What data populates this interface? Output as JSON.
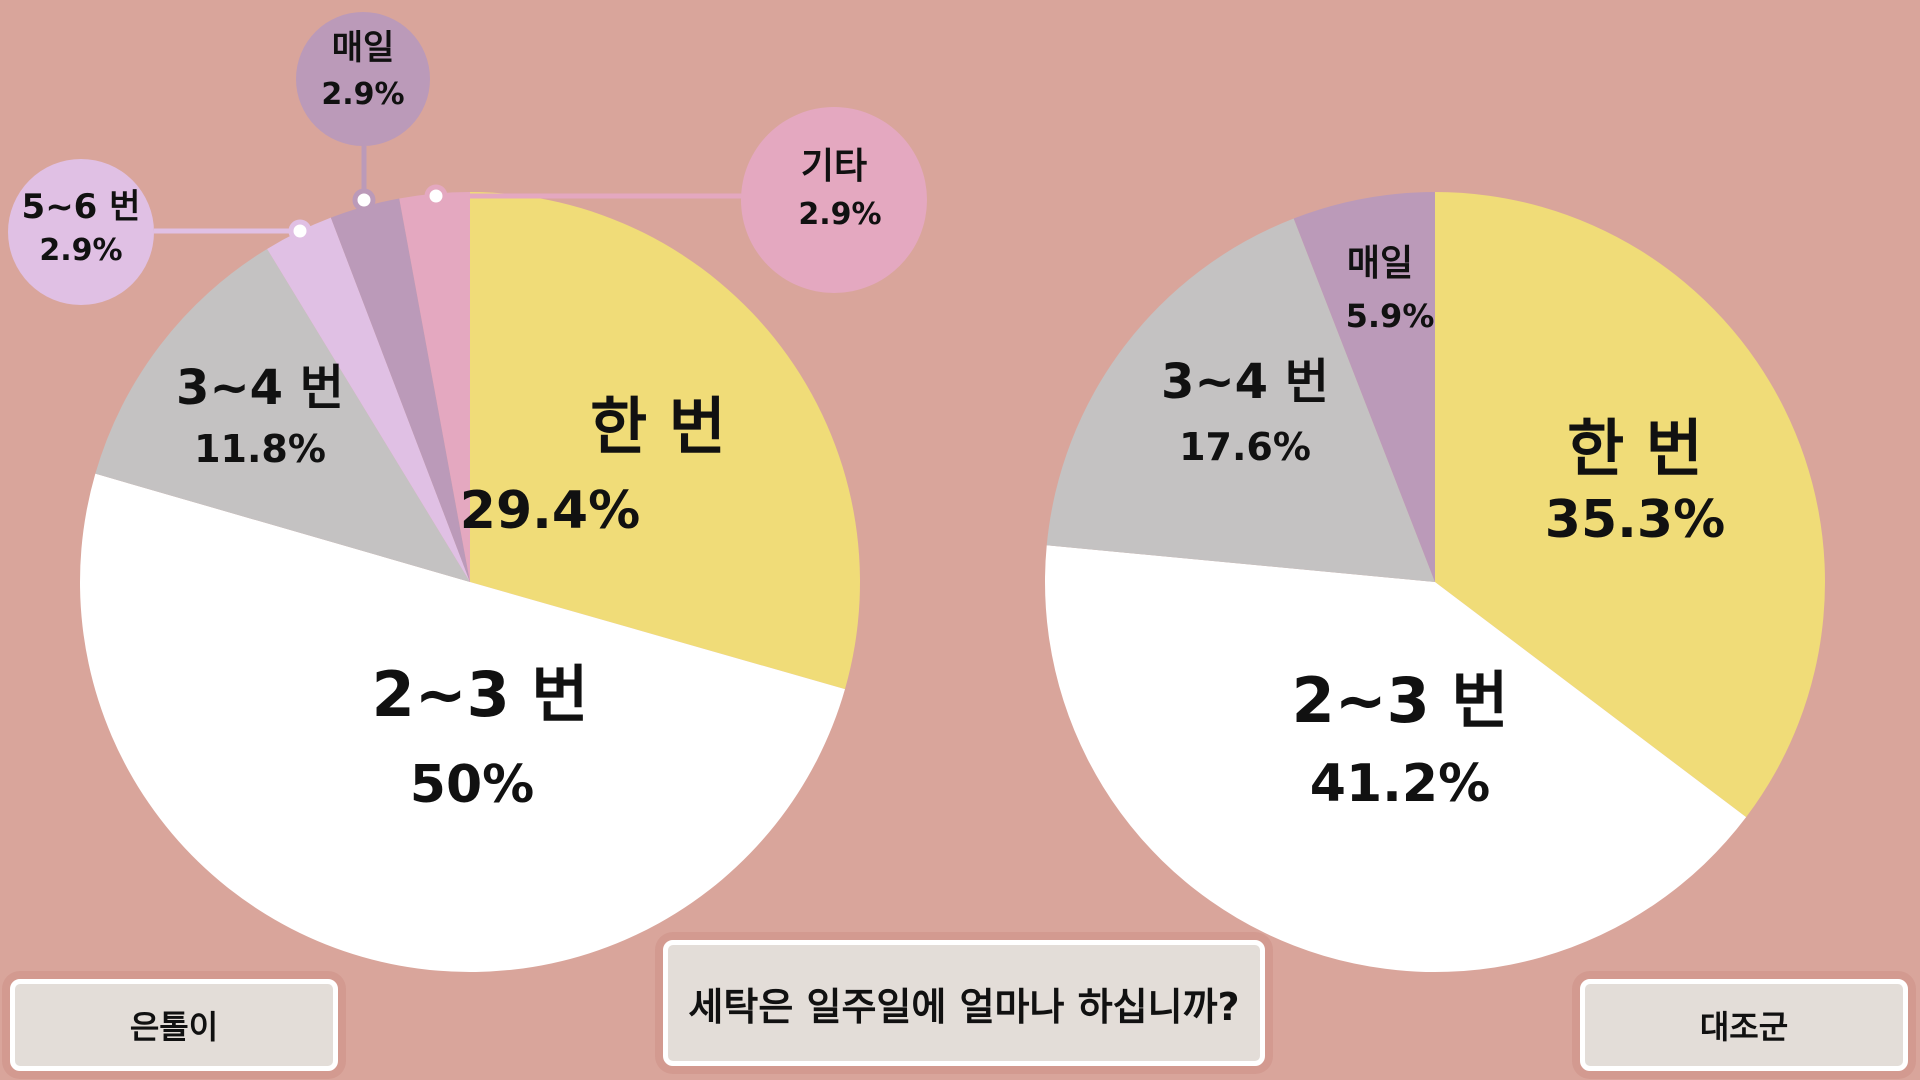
{
  "chart_data": [
    {
      "type": "pie",
      "group": "은톨이",
      "slices": [
        {
          "label": "한 번",
          "value_text": "29.4%",
          "value": 29.4,
          "color": "#f0dc78"
        },
        {
          "label": "2~3 번",
          "value_text": "50%",
          "value": 50.0,
          "color": "#ffffff"
        },
        {
          "label": "3~4 번",
          "value_text": "11.8%",
          "value": 11.8,
          "color": "#c4c2c2"
        },
        {
          "label": "5~6 번",
          "value_text": "2.9%",
          "value": 2.9,
          "color": "#e0c0e4"
        },
        {
          "label": "매일",
          "value_text": "2.9%",
          "value": 2.9,
          "color": "#bb9ab9"
        },
        {
          "label": "기타",
          "value_text": "2.9%",
          "value": 2.9,
          "color": "#e4a8c0"
        }
      ]
    },
    {
      "type": "pie",
      "group": "대조군",
      "slices": [
        {
          "label": "한 번",
          "value_text": "35.3%",
          "value": 35.3,
          "color": "#f0dc78"
        },
        {
          "label": "2~3 번",
          "value_text": "41.2%",
          "value": 41.2,
          "color": "#ffffff"
        },
        {
          "label": "3~4 번",
          "value_text": "17.6%",
          "value": 17.6,
          "color": "#c4c2c2"
        },
        {
          "label": "매일",
          "value_text": "5.9%",
          "value": 5.9,
          "color": "#bb9ab9"
        }
      ]
    }
  ],
  "question": "세탁은 일주일에 얼마나 하십니까?",
  "colors": {
    "background": "#d9a59b",
    "box_fill": "#e3ddd8",
    "box_border": "#ffffff"
  }
}
